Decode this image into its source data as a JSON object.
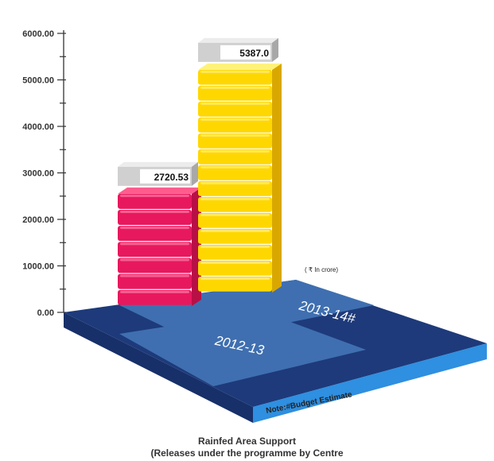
{
  "chart_data": {
    "type": "bar",
    "title": "Rainfed Area Support",
    "subtitle": "(Releases under the programme by Centre",
    "unit_note": "( ₹ In crore)",
    "footnote": "Note:#Budget Estimate",
    "categories": [
      "2012-13",
      "2013-14#"
    ],
    "values": [
      2720.53,
      5387.0
    ],
    "value_labels": [
      "2720.53",
      "5387.0"
    ],
    "y_ticks": [
      "0.00",
      "1000.00",
      "2000.00",
      "3000.00",
      "4000.00",
      "5000.00",
      "6000.00"
    ],
    "ylim": [
      0,
      6000
    ],
    "grid": false,
    "three_d": true
  },
  "colors": {
    "bar_2012_13": "#e8185e",
    "bar_2013_14": "#ffd700",
    "floor_dark": "#1e3a7a",
    "floor_light": "#3f6fb0",
    "floor_edge": "#2f8fe0",
    "label_box": "#d0d0d0"
  }
}
